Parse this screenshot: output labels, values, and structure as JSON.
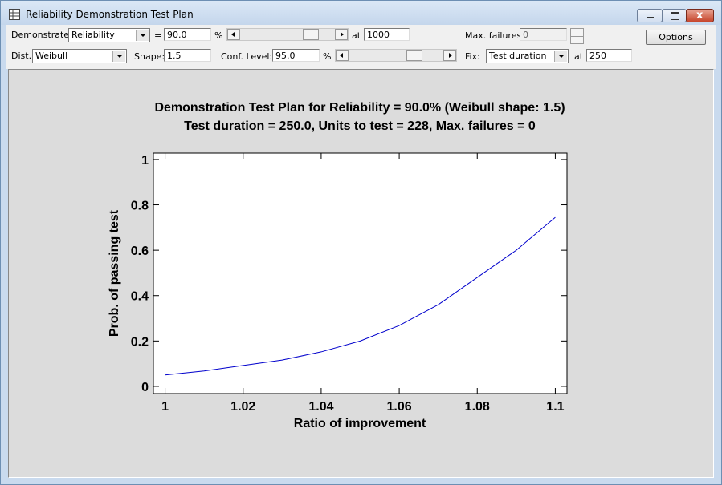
{
  "window": {
    "title": "Reliability Demonstration Test Plan"
  },
  "toolbar": {
    "demonstrate_label": "Demonstrate:",
    "demonstrate_value": "Reliability",
    "equals": "=",
    "reliability": "90.0",
    "percent_1": "%",
    "at_1": "at",
    "time": "1000",
    "max_failures_label": "Max. failures:",
    "max_failures": "0",
    "options": "Options",
    "dist_label": "Dist.:",
    "dist_value": "Weibull",
    "shape_label": "Shape:",
    "shape": "1.5",
    "conf_label": "Conf. Level:",
    "conf": "95.0",
    "percent_2": "%",
    "fix_label": "Fix:",
    "fix_value": "Test duration",
    "at_2": "at",
    "fix_at": "250"
  },
  "chart_data": {
    "type": "line",
    "title": "Demonstration Test Plan for Reliability = 90.0% (Weibull shape: 1.5)",
    "subtitle": "Test duration = 250.0, Units to test = 228, Max. failures = 0",
    "x_label": "Ratio of improvement",
    "y_label": "Prob. of passing test",
    "x": [
      1,
      1.01,
      1.02,
      1.03,
      1.04,
      1.05,
      1.06,
      1.07,
      1.08,
      1.09,
      1.1
    ],
    "values": [
      0.05,
      0.068,
      0.092,
      0.116,
      0.152,
      0.2,
      0.268,
      0.36,
      0.48,
      0.6,
      0.745
    ],
    "color": "#0000cc",
    "xlim": [
      0.997,
      1.103
    ],
    "xticks": [
      1,
      1.02,
      1.04,
      1.06,
      1.08,
      1.1
    ],
    "ylim": [
      -0.032,
      1.028
    ],
    "yticks": [
      0,
      0.2,
      0.4,
      0.6,
      0.8,
      1
    ]
  }
}
